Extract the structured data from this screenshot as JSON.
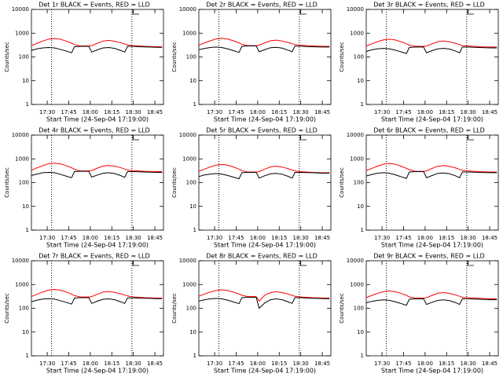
{
  "chart_data": [
    {
      "type": "line",
      "title": "Det 1r BLACK = Events, RED = LLD",
      "y_label": "Counts/sec",
      "x_label": "Start Time (24-Sep-04 17:19:00)",
      "y_scale": "log",
      "ylim": [
        1,
        10000
      ],
      "yticks": [
        1,
        10,
        100,
        1000,
        10000
      ],
      "xlim": [
        "17:19",
        "18:51"
      ],
      "xticks": [
        "17:30",
        "17:45",
        "18:00",
        "18:15",
        "18:30",
        "18:45"
      ],
      "vlines": [
        "17:33",
        "18:29"
      ],
      "x": [
        "17:19",
        "17:23",
        "17:27",
        "17:31",
        "17:35",
        "17:39",
        "17:43",
        "17:47",
        "17:49",
        "17:53",
        "17:57",
        "17:59",
        "18:01",
        "18:05",
        "18:09",
        "18:13",
        "18:17",
        "18:21",
        "18:24",
        "18:26",
        "18:30",
        "18:34",
        "18:38",
        "18:42",
        "18:46",
        "18:50"
      ],
      "series": [
        {
          "color": "#ff0000",
          "values": [
            300,
            380,
            470,
            560,
            600,
            560,
            470,
            380,
            330,
            290,
            290,
            290,
            300,
            380,
            470,
            500,
            460,
            400,
            350,
            320,
            300,
            290,
            280,
            275,
            270,
            270
          ]
        },
        {
          "color": "#000000",
          "values": [
            190,
            220,
            240,
            250,
            240,
            210,
            180,
            150,
            270,
            280,
            280,
            280,
            160,
            200,
            240,
            250,
            230,
            190,
            160,
            280,
            280,
            270,
            265,
            260,
            255,
            255
          ]
        }
      ]
    },
    {
      "type": "line",
      "title": "Det 2r BLACK = Events, RED = LLD",
      "y_label": "Counts/sec",
      "x_label": "Start Time (24-Sep-04 17:19:00)",
      "y_scale": "log",
      "ylim": [
        1,
        10000
      ],
      "yticks": [
        1,
        10,
        100,
        1000,
        10000
      ],
      "xlim": [
        "17:19",
        "18:51"
      ],
      "xticks": [
        "17:30",
        "17:45",
        "18:00",
        "18:15",
        "18:30",
        "18:45"
      ],
      "vlines": [
        "17:33",
        "18:29"
      ],
      "x": [
        "17:19",
        "17:23",
        "17:27",
        "17:31",
        "17:35",
        "17:39",
        "17:43",
        "17:47",
        "17:49",
        "17:53",
        "17:57",
        "17:59",
        "18:01",
        "18:05",
        "18:09",
        "18:13",
        "18:17",
        "18:21",
        "18:24",
        "18:26",
        "18:30",
        "18:34",
        "18:38",
        "18:42",
        "18:46",
        "18:50"
      ],
      "series": [
        {
          "color": "#ff0000",
          "values": [
            310,
            390,
            480,
            570,
            610,
            570,
            480,
            390,
            340,
            300,
            300,
            300,
            310,
            390,
            480,
            510,
            470,
            410,
            360,
            330,
            310,
            300,
            290,
            285,
            280,
            280
          ]
        },
        {
          "color": "#000000",
          "values": [
            200,
            230,
            250,
            260,
            250,
            220,
            185,
            155,
            280,
            290,
            290,
            290,
            165,
            205,
            245,
            255,
            235,
            195,
            165,
            285,
            285,
            275,
            270,
            265,
            260,
            260
          ]
        }
      ]
    },
    {
      "type": "line",
      "title": "Det 3r BLACK = Events, RED = LLD",
      "y_label": "Counts/sec",
      "x_label": "Start Time (24-Sep-04 17:19:00)",
      "y_scale": "log",
      "ylim": [
        1,
        10000
      ],
      "yticks": [
        1,
        10,
        100,
        1000,
        10000
      ],
      "xlim": [
        "17:19",
        "18:51"
      ],
      "xticks": [
        "17:30",
        "17:45",
        "18:00",
        "18:15",
        "18:30",
        "18:45"
      ],
      "vlines": [
        "17:33",
        "18:29"
      ],
      "x": [
        "17:19",
        "17:23",
        "17:27",
        "17:31",
        "17:35",
        "17:39",
        "17:43",
        "17:47",
        "17:49",
        "17:53",
        "17:57",
        "17:59",
        "18:01",
        "18:05",
        "18:09",
        "18:13",
        "18:17",
        "18:21",
        "18:24",
        "18:26",
        "18:30",
        "18:34",
        "18:38",
        "18:42",
        "18:46",
        "18:50"
      ],
      "series": [
        {
          "color": "#ff0000",
          "values": [
            290,
            360,
            440,
            520,
            560,
            520,
            440,
            360,
            310,
            280,
            280,
            280,
            290,
            360,
            440,
            470,
            430,
            380,
            330,
            300,
            290,
            280,
            270,
            265,
            260,
            260
          ]
        },
        {
          "color": "#000000",
          "values": [
            170,
            200,
            220,
            230,
            220,
            195,
            165,
            140,
            250,
            260,
            260,
            260,
            150,
            185,
            220,
            230,
            215,
            180,
            150,
            260,
            260,
            255,
            250,
            245,
            240,
            240
          ]
        }
      ]
    },
    {
      "type": "line",
      "title": "Det 4r BLACK = Events, RED = LLD",
      "y_label": "Counts/sec",
      "x_label": "Start Time (24-Sep-04 17:19:00)",
      "y_scale": "log",
      "ylim": [
        1,
        10000
      ],
      "yticks": [
        1,
        10,
        100,
        1000,
        10000
      ],
      "xlim": [
        "17:19",
        "18:51"
      ],
      "xticks": [
        "17:30",
        "17:45",
        "18:00",
        "18:15",
        "18:30",
        "18:45"
      ],
      "vlines": [
        "17:33",
        "18:29"
      ],
      "x": [
        "17:19",
        "17:23",
        "17:27",
        "17:31",
        "17:35",
        "17:39",
        "17:43",
        "17:47",
        "17:49",
        "17:53",
        "17:57",
        "17:59",
        "18:01",
        "18:05",
        "18:09",
        "18:13",
        "18:17",
        "18:21",
        "18:24",
        "18:26",
        "18:30",
        "18:34",
        "18:38",
        "18:42",
        "18:46",
        "18:50"
      ],
      "series": [
        {
          "color": "#ff0000",
          "values": [
            330,
            420,
            520,
            620,
            660,
            620,
            520,
            420,
            360,
            310,
            310,
            310,
            320,
            410,
            500,
            530,
            490,
            430,
            370,
            340,
            320,
            310,
            300,
            295,
            290,
            290
          ]
        },
        {
          "color": "#000000",
          "values": [
            200,
            230,
            260,
            270,
            260,
            225,
            190,
            160,
            290,
            300,
            300,
            300,
            170,
            210,
            250,
            260,
            240,
            200,
            165,
            290,
            290,
            285,
            280,
            275,
            270,
            270
          ]
        }
      ]
    },
    {
      "type": "line",
      "title": "Det 5r BLACK = Events, RED = LLD",
      "y_label": "Counts/sec",
      "x_label": "Start Time (24-Sep-04 17:19:00)",
      "y_scale": "log",
      "ylim": [
        1,
        10000
      ],
      "yticks": [
        1,
        10,
        100,
        1000,
        10000
      ],
      "xlim": [
        "17:19",
        "18:51"
      ],
      "xticks": [
        "17:30",
        "17:45",
        "18:00",
        "18:15",
        "18:30",
        "18:45"
      ],
      "vlines": [
        "17:33",
        "18:29"
      ],
      "x": [
        "17:19",
        "17:23",
        "17:27",
        "17:31",
        "17:35",
        "17:39",
        "17:43",
        "17:47",
        "17:49",
        "17:53",
        "17:57",
        "17:59",
        "18:01",
        "18:05",
        "18:09",
        "18:13",
        "18:17",
        "18:21",
        "18:24",
        "18:26",
        "18:30",
        "18:34",
        "18:38",
        "18:42",
        "18:46",
        "18:50"
      ],
      "series": [
        {
          "color": "#ff0000",
          "values": [
            300,
            370,
            460,
            540,
            580,
            540,
            460,
            370,
            320,
            280,
            280,
            280,
            290,
            370,
            460,
            490,
            450,
            390,
            340,
            310,
            290,
            280,
            270,
            265,
            260,
            260
          ]
        },
        {
          "color": "#000000",
          "values": [
            180,
            210,
            230,
            240,
            230,
            200,
            170,
            145,
            260,
            270,
            270,
            270,
            155,
            195,
            235,
            245,
            225,
            185,
            155,
            270,
            270,
            265,
            260,
            255,
            250,
            250
          ]
        }
      ]
    },
    {
      "type": "line",
      "title": "Det 6r BLACK = Events, RED = LLD",
      "y_label": "Counts/sec",
      "x_label": "Start Time (24-Sep-04 17:19:00)",
      "y_scale": "log",
      "ylim": [
        1,
        10000
      ],
      "yticks": [
        1,
        10,
        100,
        1000,
        10000
      ],
      "xlim": [
        "17:19",
        "18:51"
      ],
      "xticks": [
        "17:30",
        "17:45",
        "18:00",
        "18:15",
        "18:30",
        "18:45"
      ],
      "vlines": [
        "17:33",
        "18:29"
      ],
      "x": [
        "17:19",
        "17:23",
        "17:27",
        "17:31",
        "17:35",
        "17:39",
        "17:43",
        "17:47",
        "17:49",
        "17:53",
        "17:57",
        "17:59",
        "18:01",
        "18:05",
        "18:09",
        "18:13",
        "18:17",
        "18:21",
        "18:24",
        "18:26",
        "18:30",
        "18:34",
        "18:38",
        "18:42",
        "18:46",
        "18:50"
      ],
      "series": [
        {
          "color": "#ff0000",
          "values": [
            320,
            400,
            500,
            600,
            640,
            600,
            500,
            400,
            350,
            300,
            300,
            300,
            310,
            400,
            490,
            520,
            480,
            420,
            360,
            330,
            310,
            300,
            290,
            285,
            280,
            280
          ]
        },
        {
          "color": "#000000",
          "values": [
            190,
            220,
            250,
            260,
            250,
            215,
            180,
            150,
            280,
            290,
            290,
            290,
            160,
            200,
            245,
            255,
            235,
            195,
            160,
            280,
            280,
            275,
            270,
            265,
            260,
            260
          ]
        }
      ]
    },
    {
      "type": "line",
      "title": "Det 7r BLACK = Events, RED = LLD",
      "y_label": "Counts/sec",
      "x_label": "Start Time (24-Sep-04 17:19:00)",
      "y_scale": "log",
      "ylim": [
        1,
        10000
      ],
      "yticks": [
        1,
        10,
        100,
        1000,
        10000
      ],
      "xlim": [
        "17:19",
        "18:51"
      ],
      "xticks": [
        "17:30",
        "17:45",
        "18:00",
        "18:15",
        "18:30",
        "18:45"
      ],
      "vlines": [
        "17:33",
        "18:29"
      ],
      "x": [
        "17:19",
        "17:23",
        "17:27",
        "17:31",
        "17:35",
        "17:39",
        "17:43",
        "17:47",
        "17:49",
        "17:53",
        "17:57",
        "17:59",
        "18:01",
        "18:05",
        "18:09",
        "18:13",
        "18:17",
        "18:21",
        "18:24",
        "18:26",
        "18:30",
        "18:34",
        "18:38",
        "18:42",
        "18:46",
        "18:50"
      ],
      "series": [
        {
          "color": "#ff0000",
          "values": [
            310,
            390,
            490,
            580,
            620,
            580,
            490,
            390,
            340,
            300,
            300,
            300,
            310,
            390,
            480,
            510,
            470,
            410,
            360,
            330,
            300,
            290,
            280,
            275,
            270,
            270
          ]
        },
        {
          "color": "#000000",
          "values": [
            190,
            220,
            245,
            255,
            245,
            210,
            180,
            150,
            270,
            280,
            280,
            280,
            160,
            200,
            240,
            250,
            230,
            190,
            160,
            275,
            275,
            270,
            265,
            260,
            255,
            255
          ]
        }
      ]
    },
    {
      "type": "line",
      "title": "Det 8r BLACK = Events, RED = LLD",
      "y_label": "Counts/sec",
      "x_label": "Start Time (24-Sep-04 17:19:00)",
      "y_scale": "log",
      "ylim": [
        1,
        10000
      ],
      "yticks": [
        1,
        10,
        100,
        1000,
        10000
      ],
      "xlim": [
        "17:19",
        "18:51"
      ],
      "xticks": [
        "17:30",
        "17:45",
        "18:00",
        "18:15",
        "18:30",
        "18:45"
      ],
      "vlines": [
        "17:33",
        "18:29"
      ],
      "x": [
        "17:19",
        "17:23",
        "17:27",
        "17:31",
        "17:35",
        "17:39",
        "17:43",
        "17:47",
        "17:49",
        "17:53",
        "17:57",
        "17:59",
        "18:01",
        "18:05",
        "18:09",
        "18:13",
        "18:17",
        "18:21",
        "18:24",
        "18:26",
        "18:30",
        "18:34",
        "18:38",
        "18:42",
        "18:46",
        "18:50"
      ],
      "series": [
        {
          "color": "#ff0000",
          "values": [
            320,
            400,
            480,
            560,
            600,
            560,
            480,
            400,
            350,
            310,
            310,
            310,
            200,
            360,
            460,
            500,
            460,
            400,
            350,
            320,
            300,
            290,
            280,
            275,
            270,
            270
          ]
        },
        {
          "color": "#000000",
          "values": [
            200,
            230,
            250,
            260,
            250,
            220,
            185,
            155,
            280,
            290,
            290,
            290,
            100,
            170,
            230,
            250,
            230,
            190,
            160,
            280,
            280,
            270,
            265,
            260,
            255,
            255
          ]
        }
      ]
    },
    {
      "type": "line",
      "title": "Det 9r BLACK = Events, RED = LLD",
      "y_label": "Counts/sec",
      "x_label": "Start Time (24-Sep-04 17:19:00)",
      "y_scale": "log",
      "ylim": [
        1,
        10000
      ],
      "yticks": [
        1,
        10,
        100,
        1000,
        10000
      ],
      "xlim": [
        "17:19",
        "18:51"
      ],
      "xticks": [
        "17:30",
        "17:45",
        "18:00",
        "18:15",
        "18:30",
        "18:45"
      ],
      "vlines": [
        "17:33",
        "18:29"
      ],
      "x": [
        "17:19",
        "17:23",
        "17:27",
        "17:31",
        "17:35",
        "17:39",
        "17:43",
        "17:47",
        "17:49",
        "17:53",
        "17:57",
        "17:59",
        "18:01",
        "18:05",
        "18:09",
        "18:13",
        "18:17",
        "18:21",
        "18:24",
        "18:26",
        "18:30",
        "18:34",
        "18:38",
        "18:42",
        "18:46",
        "18:50"
      ],
      "series": [
        {
          "color": "#ff0000",
          "values": [
            280,
            350,
            430,
            500,
            540,
            500,
            430,
            350,
            300,
            270,
            270,
            270,
            280,
            350,
            430,
            460,
            420,
            370,
            320,
            290,
            280,
            270,
            260,
            255,
            250,
            250
          ]
        },
        {
          "color": "#000000",
          "values": [
            170,
            195,
            215,
            225,
            215,
            190,
            160,
            135,
            240,
            250,
            250,
            250,
            145,
            180,
            215,
            225,
            210,
            175,
            145,
            250,
            250,
            245,
            240,
            235,
            230,
            230
          ]
        }
      ]
    }
  ]
}
